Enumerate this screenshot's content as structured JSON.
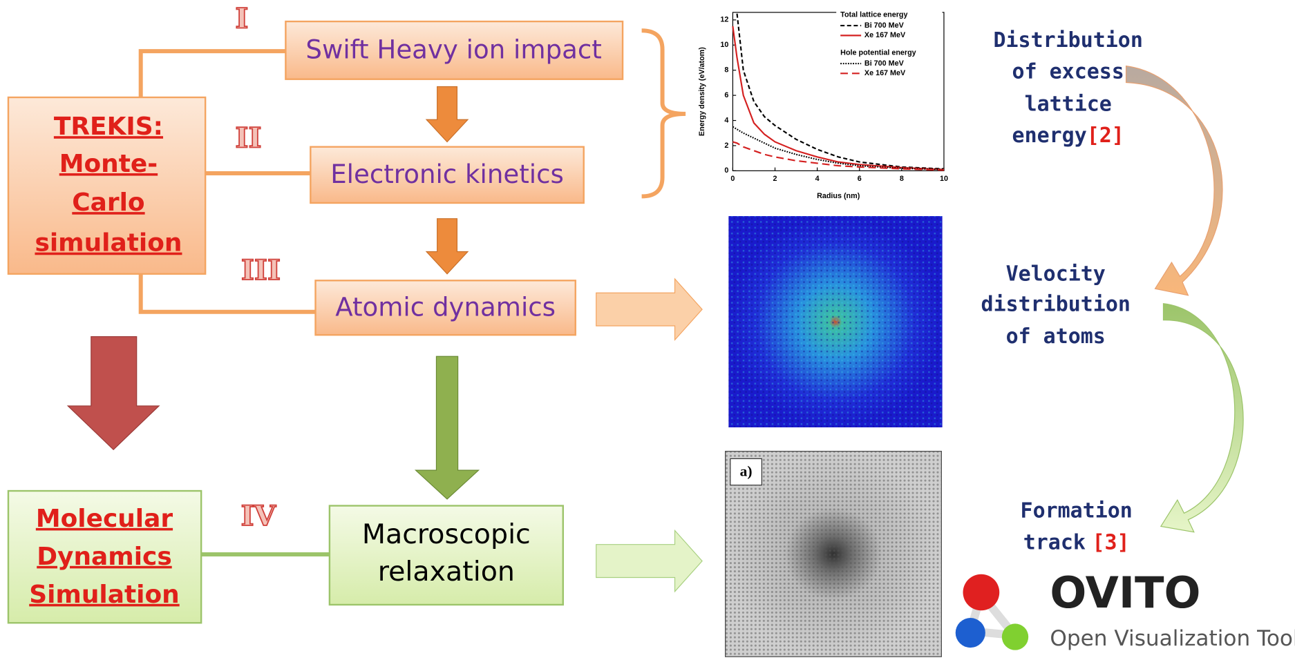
{
  "roman_labels": [
    "I",
    "II",
    "III",
    "IV"
  ],
  "steps": [
    "Swift Heavy ion impact",
    "Electronic kinetics",
    "Atomic dynamics"
  ],
  "macro_step": {
    "lines": [
      "Macroscopic",
      "relaxation"
    ]
  },
  "trekis": {
    "lines": [
      "TREKIS:",
      "Monte-",
      "Carlo",
      "simulation"
    ]
  },
  "md": {
    "lines": [
      "Molecular",
      "Dynamics",
      "Simulation"
    ]
  },
  "notes": [
    {
      "lines": [
        "Distribution",
        "of excess",
        "lattice",
        "energy"
      ],
      "ref": "[2]"
    },
    {
      "lines": [
        "Velocity",
        "distribution",
        "of atoms"
      ]
    },
    {
      "lines": [
        "Formation",
        "track"
      ],
      "ref": "[3]"
    }
  ],
  "gray_panel_label": "a)",
  "ovito": {
    "title": "OVITO",
    "subtitle": "Open Visualization Tool"
  },
  "chart_data": {
    "type": "line",
    "x_label": "Radius (nm)",
    "y_label": "Energy density (eV/atom)",
    "xlim": [
      0,
      10
    ],
    "ylim": [
      0,
      12.6
    ],
    "xticks": [
      0,
      2,
      4,
      6,
      8,
      10
    ],
    "yticks": [
      0,
      2,
      4,
      6,
      8,
      10,
      12
    ],
    "legend_titles": [
      "Total lattice energy",
      "Hole potential energy"
    ],
    "x": [
      0,
      0.2,
      0.5,
      1,
      1.5,
      2,
      3,
      4,
      5,
      6,
      8,
      10
    ],
    "series": [
      {
        "name": "Bi 700 MeV",
        "color": "#000000",
        "style": "dashed",
        "values": [
          null,
          12.5,
          8,
          5.5,
          4.3,
          3.6,
          2.5,
          1.7,
          1.1,
          0.7,
          0.3,
          0.15
        ]
      },
      {
        "name": "Xe 167 MeV",
        "color": "#d42020",
        "style": "solid",
        "values": [
          11.5,
          9,
          6,
          3.8,
          2.9,
          2.3,
          1.6,
          1.1,
          0.7,
          0.5,
          0.25,
          0.1
        ]
      },
      {
        "name": "Bi 700 MeV",
        "color": "#000000",
        "style": "dotted",
        "values": [
          3.5,
          3.3,
          3,
          2.6,
          2.2,
          1.8,
          1.3,
          0.9,
          0.6,
          0.4,
          0.2,
          0.1
        ]
      },
      {
        "name": "Xe 167 MeV",
        "color": "#d42020",
        "style": "long-dashed",
        "values": [
          2.3,
          2.2,
          1.9,
          1.6,
          1.3,
          1.1,
          0.8,
          0.6,
          0.4,
          0.3,
          0.15,
          0.05
        ]
      }
    ]
  }
}
